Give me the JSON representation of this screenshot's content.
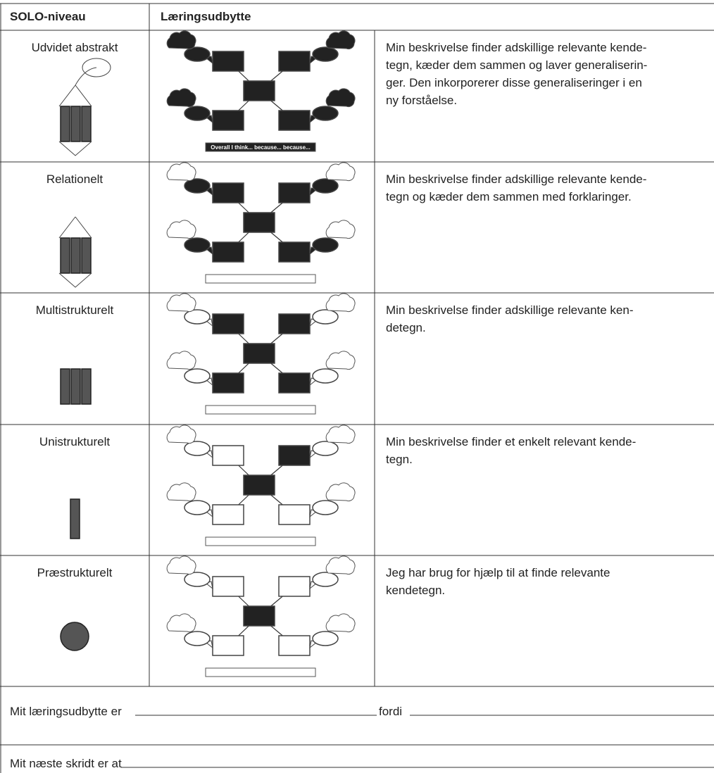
{
  "table": {
    "headers": [
      "SOLO-niveau",
      "Læringsudbytte"
    ],
    "rows": [
      {
        "level": "Udvidet abstrakt",
        "diagram_caption": "Overall I think... because... because...",
        "description": [
          "Min beskrivelse finder adskillige relevante kende-",
          "tegn, kæder dem sammen og laver generaliserin-",
          "ger. Den inkorporerer disse generaliseringer i en",
          "ny forståelse."
        ]
      },
      {
        "level": "Relationelt",
        "description": [
          "Min beskrivelse finder adskillige relevante kende-",
          "tegn og kæder dem sammen med forklaringer."
        ]
      },
      {
        "level": "Multistrukturelt",
        "description": [
          "Min beskrivelse finder adskillige relevante ken-",
          "detegn."
        ]
      },
      {
        "level": "Unistrukturelt",
        "description": [
          "Min beskrivelse finder et enkelt relevant kende-",
          "tegn."
        ]
      },
      {
        "level": "Præstrukturelt",
        "description": [
          "Jeg har brug for hjælp til at finde relevante",
          "kendetegn."
        ]
      }
    ]
  },
  "footer": {
    "line1_start": "Mit læringsudbytte er",
    "line1_mid": "fordi",
    "line2_start": "Mit næste skridt er at"
  }
}
